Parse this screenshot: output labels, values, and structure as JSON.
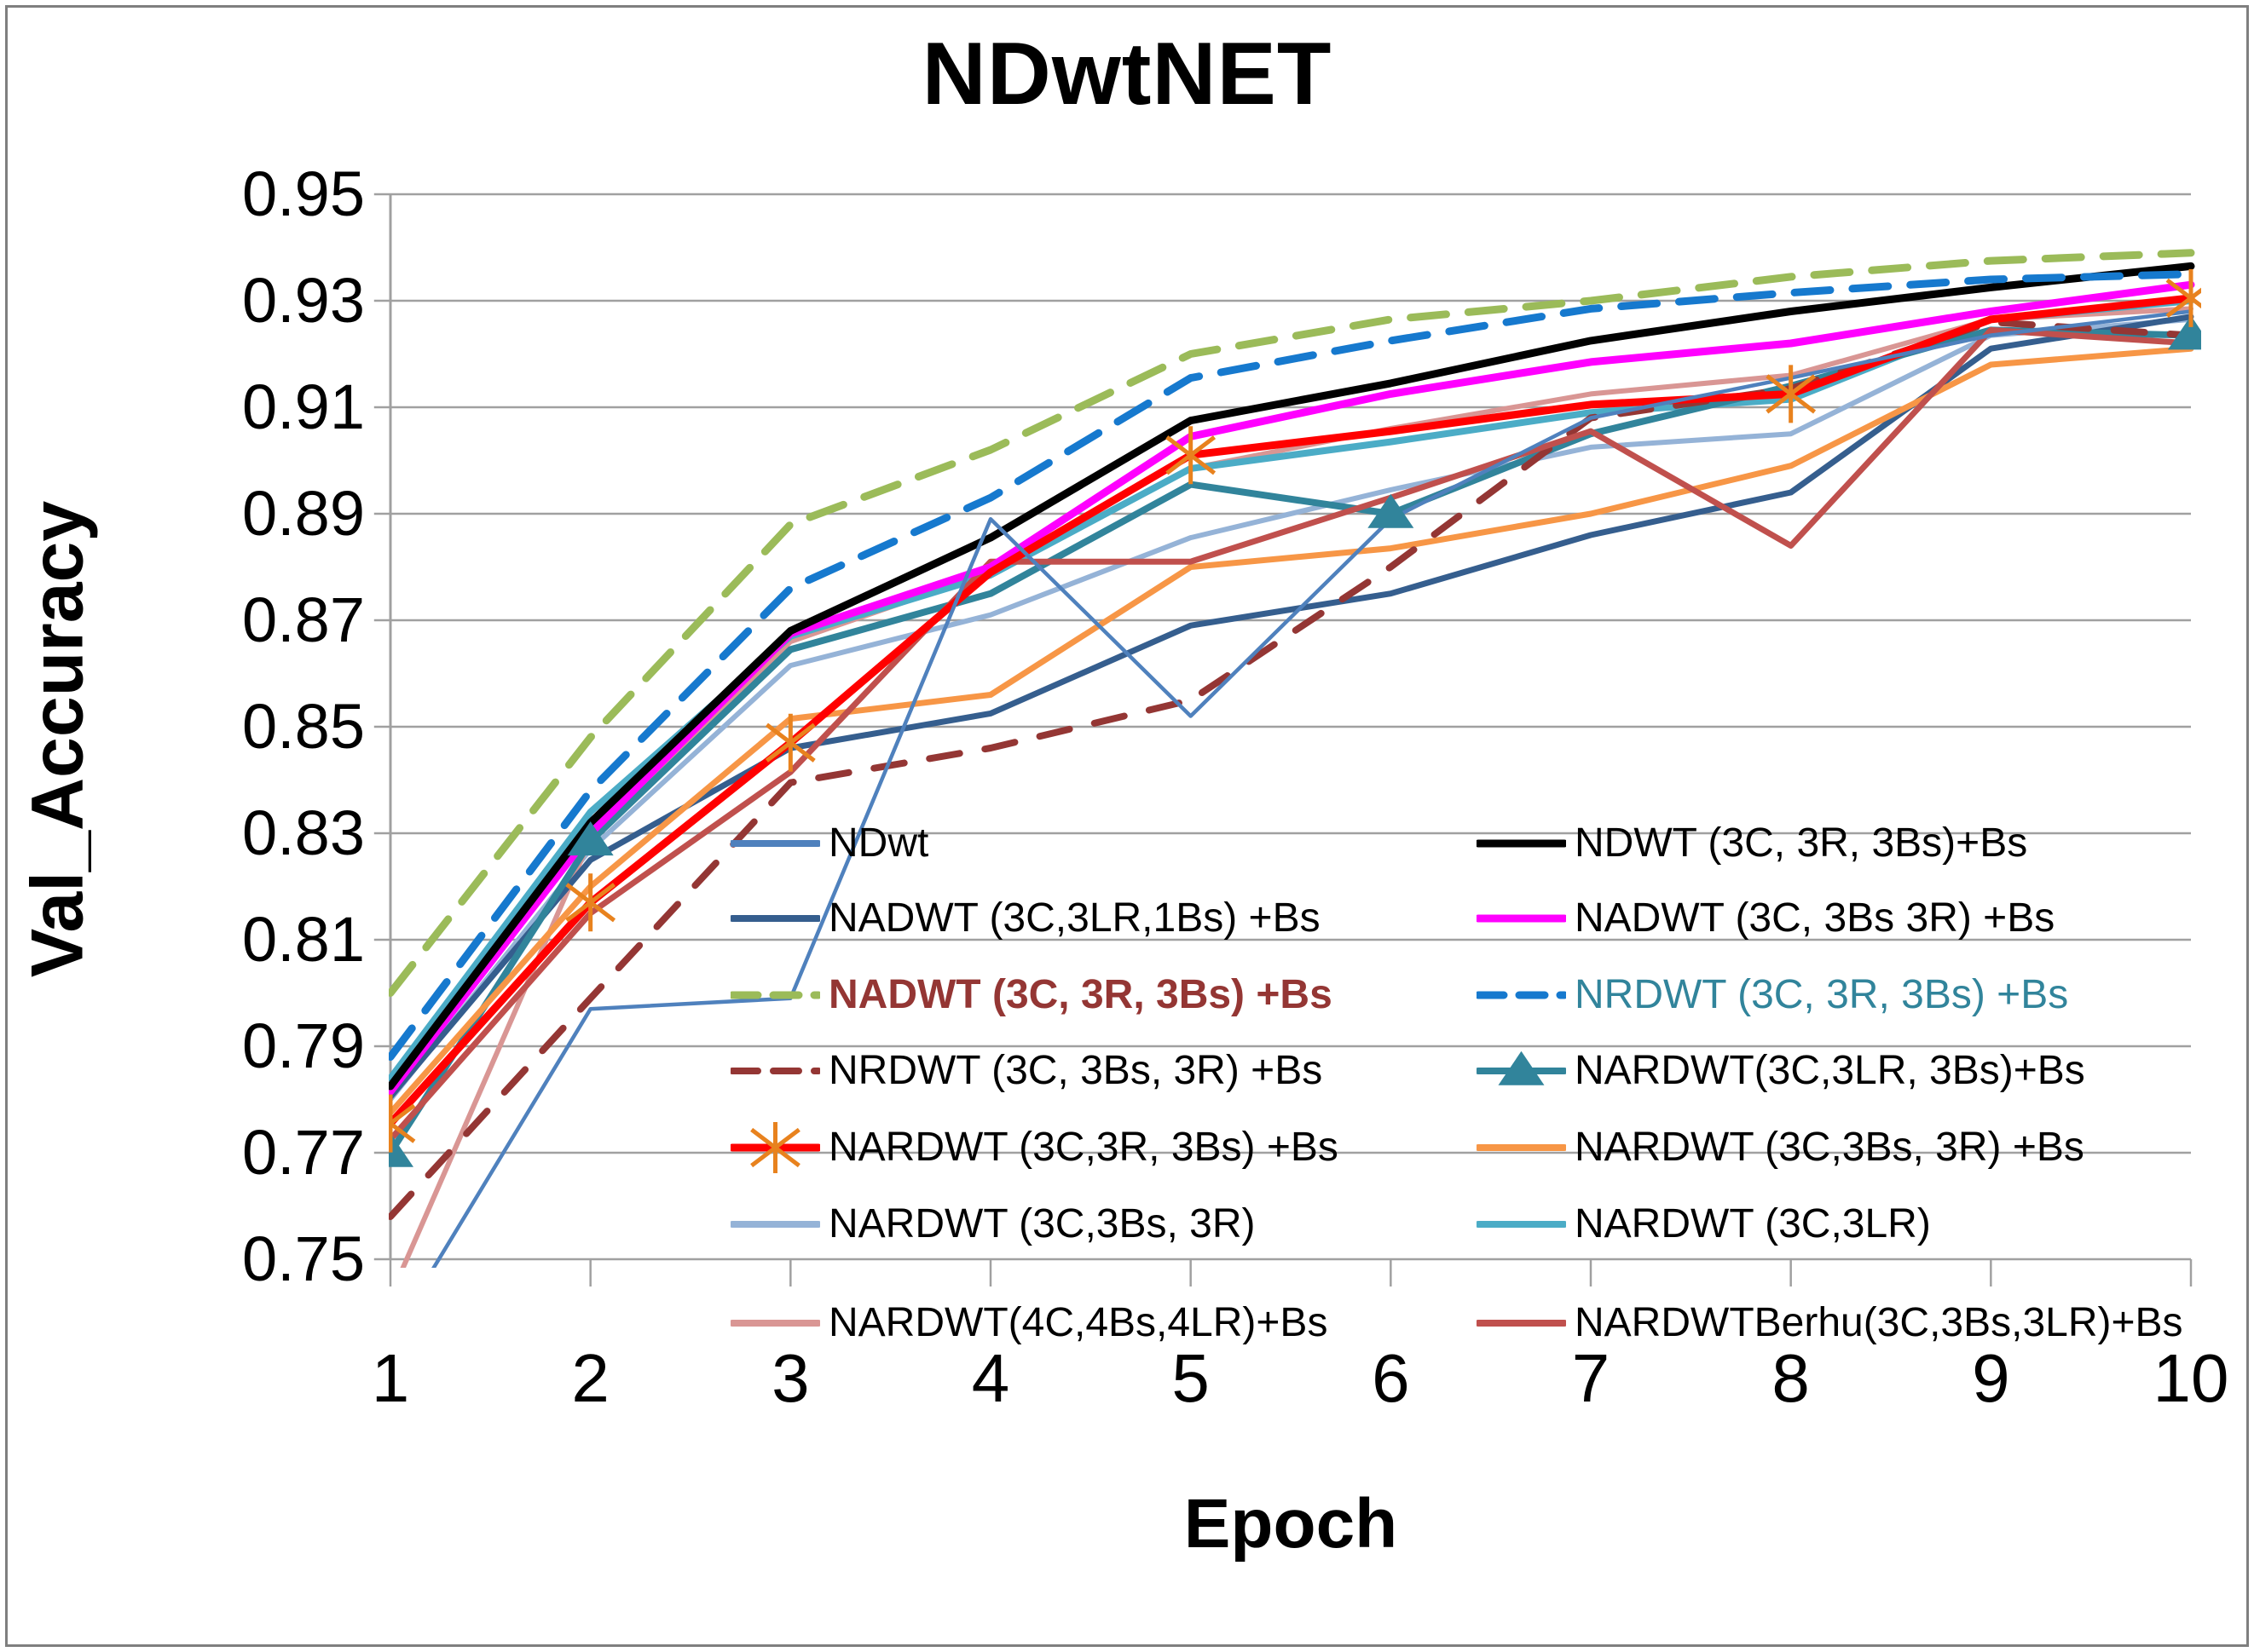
{
  "title": "NDwtNET",
  "chart_data": {
    "type": "line",
    "title": "NDwtNET",
    "xlabel": "Epoch",
    "ylabel": "Val_Accuracy",
    "x": [
      1,
      2,
      3,
      4,
      5,
      6,
      7,
      8,
      9,
      10
    ],
    "x_tick_labels": [
      "1",
      "2",
      "3",
      "4",
      "5",
      "6",
      "7",
      "8",
      "9",
      "10"
    ],
    "y_tick_labels": [
      "0.95",
      "0.93",
      "0.91",
      "0.89",
      "0.87",
      "0.85",
      "0.83",
      "0.81",
      "0.79",
      "0.77",
      "0.75"
    ],
    "ylim": [
      0.75,
      0.95
    ],
    "y_step": 0.02,
    "grid": "horizontal",
    "legend_position": "inside-bottom, two columns",
    "axis_color": "#a0a0a0",
    "series": [
      {
        "name": "NDwt",
        "color": "#4f81bd",
        "width": 4.5,
        "dash": null,
        "marker": null,
        "legend_col": 0,
        "legend_row": 0,
        "label_color": "#000000",
        "label_bold": false,
        "values": [
          0.735,
          0.797,
          0.799,
          0.889,
          0.852,
          0.889,
          0.908,
          0.9155,
          0.9235,
          0.928
        ]
      },
      {
        "name": "NADWT (3C,3LR,1Bs) +Bs",
        "color": "#355e8e",
        "width": 7,
        "dash": null,
        "marker": null,
        "legend_col": 0,
        "legend_row": 1,
        "label_color": "#000000",
        "label_bold": false,
        "values": [
          0.7805,
          0.825,
          0.846,
          0.8525,
          0.869,
          0.875,
          0.886,
          0.894,
          0.921,
          0.927
        ]
      },
      {
        "name": "NADWT (3C, 3R, 3Bs) +Bs",
        "color": "#9bbb59",
        "width": 9,
        "dash": "42 26",
        "marker": null,
        "legend_col": 0,
        "legend_row": 2,
        "label_color": "#943634",
        "label_bold": true,
        "values": [
          0.8,
          0.848,
          0.888,
          0.902,
          0.92,
          0.9265,
          0.93,
          0.9345,
          0.9375,
          0.939
        ]
      },
      {
        "name": "NRDWT (3C, 3Bs, 3R) +Bs",
        "color": "#943634",
        "width": 8,
        "dash": "36 30",
        "marker": null,
        "legend_col": 0,
        "legend_row": 3,
        "label_color": "#000000",
        "label_bold": false,
        "values": [
          0.758,
          0.799,
          0.8395,
          0.846,
          0.855,
          0.88,
          0.908,
          0.9135,
          0.926,
          0.9235
        ]
      },
      {
        "name": "NARDWT (3C,3R, 3Bs) +Bs",
        "color": "#ff0000",
        "width": 9,
        "dash": null,
        "marker": "asterisk",
        "marker_color": "#e8821e",
        "marker_epochs": [
          1,
          2,
          3,
          5,
          8,
          10
        ],
        "legend_col": 0,
        "legend_row": 4,
        "label_color": "#000000",
        "label_bold": false,
        "values": [
          0.7755,
          0.817,
          0.847,
          0.879,
          0.901,
          0.9055,
          0.9105,
          0.9125,
          0.9265,
          0.9305
        ]
      },
      {
        "name": "NARDWT (3C,3Bs, 3R)",
        "color": "#95b3d7",
        "width": 6,
        "dash": null,
        "marker": null,
        "legend_col": 0,
        "legend_row": 5,
        "label_color": "#000000",
        "label_bold": false,
        "values": [
          0.78,
          0.827,
          0.8615,
          0.871,
          0.8855,
          0.8945,
          0.9025,
          0.905,
          0.9235,
          0.9265
        ]
      },
      {
        "name": "NARDWT(4C,4Bs,4LR)+Bs",
        "color": "#d99694",
        "width": 6,
        "dash": null,
        "marker": null,
        "legend_col": 0,
        "legend_row": 6,
        "label_color": "#000000",
        "label_bold": false,
        "values": [
          0.743,
          0.829,
          0.866,
          0.879,
          0.8985,
          0.906,
          0.9125,
          0.916,
          0.9265,
          0.9285
        ]
      },
      {
        "name": "NDWT (3C, 3R, 3Bs)+Bs",
        "color": "#000000",
        "width": 9,
        "dash": null,
        "marker": null,
        "legend_col": 1,
        "legend_row": 0,
        "label_color": "#000000",
        "label_bold": false,
        "values": [
          0.7825,
          0.832,
          0.868,
          0.8855,
          0.9075,
          0.9145,
          0.9225,
          0.928,
          0.9325,
          0.9365
        ]
      },
      {
        "name": "NADWT (3C, 3Bs 3R) +Bs",
        "color": "#ff00ff",
        "width": 9,
        "dash": null,
        "marker": null,
        "legend_col": 1,
        "legend_row": 1,
        "label_color": "#000000",
        "label_bold": false,
        "values": [
          0.7815,
          0.83,
          0.8675,
          0.88,
          0.9045,
          0.9125,
          0.9185,
          0.922,
          0.928,
          0.933
        ]
      },
      {
        "name": "NRDWT (3C, 3R, 3Bs) +Bs",
        "color": "#1679ce",
        "width": 9,
        "dash": "42 26",
        "marker": null,
        "legend_col": 1,
        "legend_row": 2,
        "label_color": "#31849b",
        "label_bold": false,
        "values": [
          0.788,
          0.838,
          0.876,
          0.893,
          0.9155,
          0.9225,
          0.9285,
          0.9315,
          0.934,
          0.935
        ]
      },
      {
        "name": "NARDWT(3C,3LR, 3Bs)+Bs",
        "color": "#31849b",
        "width": 8,
        "dash": null,
        "marker": "triangle",
        "marker_color": "#31849b",
        "marker_epochs": [
          1,
          2,
          6,
          10
        ],
        "legend_col": 1,
        "legend_row": 3,
        "label_color": "#000000",
        "label_bold": false,
        "values": [
          0.77,
          0.8285,
          0.8645,
          0.875,
          0.8955,
          0.89,
          0.905,
          0.914,
          0.9245,
          0.9235
        ]
      },
      {
        "name": "NARDWT (3C,3Bs,  3R) +Bs",
        "color": "#f79646",
        "width": 7,
        "dash": null,
        "marker": null,
        "legend_col": 1,
        "legend_row": 4,
        "label_color": "#000000",
        "label_bold": false,
        "values": [
          0.7775,
          0.82,
          0.8515,
          0.856,
          0.88,
          0.8835,
          0.89,
          0.899,
          0.918,
          0.921
        ]
      },
      {
        "name": "NARDWT (3C,3LR)",
        "color": "#4bacc6",
        "width": 8,
        "dash": null,
        "marker": null,
        "legend_col": 1,
        "legend_row": 5,
        "label_color": "#000000",
        "label_bold": false,
        "values": [
          0.784,
          0.834,
          0.867,
          0.8785,
          0.8985,
          0.9035,
          0.909,
          0.9115,
          0.9265,
          0.93
        ]
      },
      {
        "name": "NARDWTBerhu(3C,3Bs,3LR)+Bs",
        "color": "#c0504d",
        "width": 7,
        "dash": null,
        "marker": null,
        "legend_col": 1,
        "legend_row": 6,
        "label_color": "#000000",
        "label_bold": false,
        "values": [
          0.7725,
          0.815,
          0.8415,
          0.881,
          0.881,
          0.893,
          0.9055,
          0.884,
          0.9245,
          0.922
        ]
      }
    ]
  }
}
